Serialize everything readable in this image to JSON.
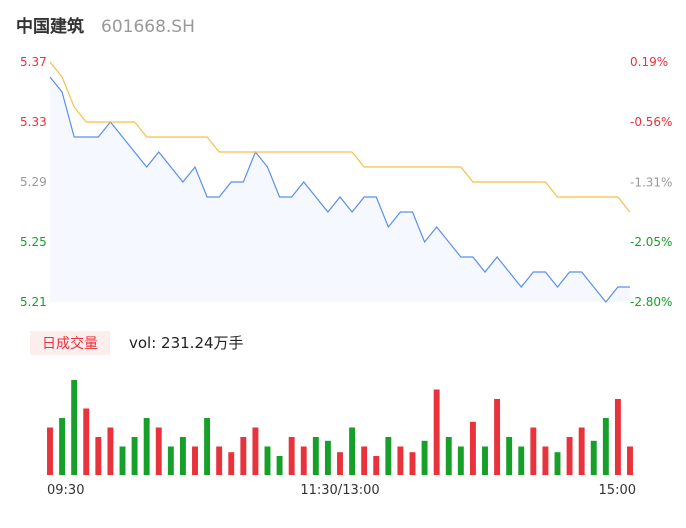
{
  "chart_data": {
    "type": "intraday",
    "title": "中国建筑",
    "subtitle": "601668.SH",
    "volume_title": "日成交量",
    "volume_text": "vol: 231.24万手",
    "xlim": [
      0,
      48
    ],
    "xticks": [
      {
        "value": 0,
        "label": "09:30"
      },
      {
        "value": 24,
        "label": "11:30/13:00"
      },
      {
        "value": 48,
        "label": "15:00"
      }
    ],
    "ylim": [
      5.21,
      5.37
    ],
    "yticks": [
      5.21,
      5.25,
      5.29,
      5.33,
      5.37
    ],
    "y2lim": [
      -2.8,
      0.19
    ],
    "y2ticks": [
      {
        "value": -2.8,
        "label": "-2.80%"
      },
      {
        "value": -2.05,
        "label": "-2.05%"
      },
      {
        "value": -1.31,
        "label": "-1.31%"
      },
      {
        "value": -0.56,
        "label": "-0.56%"
      },
      {
        "value": 0.19,
        "label": "0.19%"
      }
    ],
    "up_color": "#e8323c",
    "down_color": "#16a02a",
    "flat_color": "#999999",
    "series": [
      {
        "name": "price",
        "color": "#5b8ff0",
        "values": [
          5.36,
          5.35,
          5.32,
          5.32,
          5.32,
          5.33,
          5.32,
          5.31,
          5.3,
          5.31,
          5.3,
          5.29,
          5.3,
          5.28,
          5.28,
          5.29,
          5.29,
          5.31,
          5.3,
          5.28,
          5.28,
          5.29,
          5.28,
          5.27,
          5.28,
          5.27,
          5.28,
          5.28,
          5.26,
          5.27,
          5.27,
          5.25,
          5.26,
          5.25,
          5.24,
          5.24,
          5.23,
          5.24,
          5.23,
          5.22,
          5.23,
          5.23,
          5.22,
          5.23,
          5.23,
          5.22,
          5.21,
          5.22,
          5.22
        ]
      },
      {
        "name": "average",
        "color": "#f5c04a",
        "values": [
          5.37,
          5.36,
          5.34,
          5.33,
          5.33,
          5.33,
          5.33,
          5.33,
          5.32,
          5.32,
          5.32,
          5.32,
          5.32,
          5.32,
          5.31,
          5.31,
          5.31,
          5.31,
          5.31,
          5.31,
          5.31,
          5.31,
          5.31,
          5.31,
          5.31,
          5.31,
          5.3,
          5.3,
          5.3,
          5.3,
          5.3,
          5.3,
          5.3,
          5.3,
          5.3,
          5.29,
          5.29,
          5.29,
          5.29,
          5.29,
          5.29,
          5.29,
          5.28,
          5.28,
          5.28,
          5.28,
          5.28,
          5.28,
          5.27
        ]
      }
    ],
    "volume_ylim": [
      0,
      5
    ],
    "volume": [
      2.5,
      3,
      5,
      3.5,
      2,
      2.5,
      1.5,
      2,
      3,
      2.5,
      1.5,
      2,
      1.5,
      3,
      1.5,
      1.2,
      2,
      2.5,
      1.5,
      1,
      2,
      1.5,
      2,
      1.8,
      1.2,
      2.5,
      1.5,
      1,
      2,
      1.5,
      1.2,
      1.8,
      4.5,
      2,
      1.5,
      2.8,
      1.5,
      4,
      2,
      1.5,
      2.5,
      1.5,
      1.2,
      2,
      2.5,
      1.8,
      3,
      4,
      1.5
    ]
  }
}
